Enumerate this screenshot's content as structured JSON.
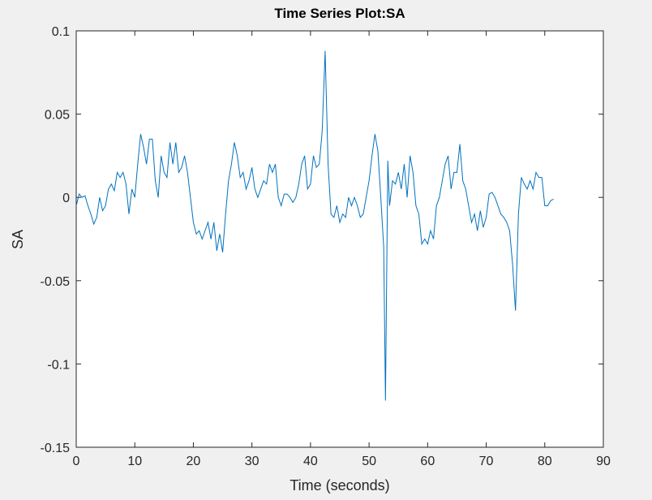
{
  "chart_data": {
    "type": "line",
    "title": "Time Series Plot:SA",
    "xlabel": "Time (seconds)",
    "ylabel": "SA",
    "xlim": [
      0,
      90
    ],
    "xticks": [
      0,
      10,
      20,
      30,
      40,
      50,
      60,
      70,
      80,
      90
    ],
    "ylim": [
      -0.15,
      0.1
    ],
    "yticks": [
      -0.15,
      -0.1,
      -0.05,
      0,
      0.05,
      0.1
    ],
    "grid": false,
    "series": [
      {
        "color": "#0072bd",
        "x": [
          0,
          0.5,
          1,
          1.5,
          2,
          2.5,
          3,
          3.5,
          4,
          4.5,
          5,
          5.5,
          6,
          6.5,
          7,
          7.5,
          8,
          8.5,
          9,
          9.5,
          10,
          10.5,
          11,
          11.5,
          12,
          12.5,
          13,
          13.5,
          14,
          14.5,
          15,
          15.5,
          16,
          16.5,
          17,
          17.5,
          18,
          18.5,
          19,
          19.5,
          20,
          20.5,
          21,
          21.5,
          22,
          22.5,
          23,
          23.5,
          24,
          24.5,
          25,
          25.5,
          26,
          26.5,
          27,
          27.5,
          28,
          28.5,
          29,
          29.5,
          30,
          30.5,
          31,
          31.5,
          32,
          32.5,
          33,
          33.5,
          34,
          34.5,
          35,
          35.5,
          36,
          36.5,
          37,
          37.5,
          38,
          38.5,
          39,
          39.5,
          40,
          40.5,
          41,
          41.5,
          42,
          42.5,
          43,
          43.5,
          44,
          44.5,
          45,
          45.5,
          46,
          46.5,
          47,
          47.5,
          48,
          48.5,
          49,
          49.5,
          50,
          50.5,
          51,
          51.5,
          52,
          52.5,
          52.8,
          53.2,
          53.5,
          54,
          54.5,
          55,
          55.5,
          56,
          56.5,
          57,
          57.5,
          58,
          58.5,
          59,
          59.5,
          60,
          60.5,
          61,
          61.5,
          62,
          62.5,
          63,
          63.5,
          64,
          64.5,
          65,
          65.5,
          66,
          66.5,
          67,
          67.5,
          68,
          68.5,
          69,
          69.5,
          70,
          70.5,
          71,
          71.5,
          72,
          72.5,
          73,
          73.5,
          74,
          74.5,
          75,
          75.5,
          76,
          76.5,
          77,
          77.5,
          78,
          78.5,
          79,
          79.5,
          80,
          80.5,
          81,
          81.5
        ],
        "values": [
          -0.005,
          0.002,
          0,
          0.001,
          -0.005,
          -0.01,
          -0.016,
          -0.012,
          0,
          -0.008,
          -0.005,
          0.005,
          0.008,
          0.004,
          0.015,
          0.012,
          0.015,
          0.008,
          -0.01,
          0.005,
          0,
          0.02,
          0.038,
          0.03,
          0.02,
          0.035,
          0.035,
          0.01,
          0,
          0.025,
          0.015,
          0.012,
          0.033,
          0.02,
          0.033,
          0.015,
          0.018,
          0.025,
          0.015,
          0,
          -0.015,
          -0.022,
          -0.02,
          -0.025,
          -0.02,
          -0.015,
          -0.025,
          -0.015,
          -0.032,
          -0.022,
          -0.033,
          -0.01,
          0.01,
          0.02,
          0.033,
          0.025,
          0.012,
          0.015,
          0.005,
          0.01,
          0.018,
          0.005,
          0,
          0.005,
          0.01,
          0.008,
          0.02,
          0.015,
          0.02,
          0,
          -0.005,
          0.002,
          0.002,
          0,
          -0.003,
          0,
          0.008,
          0.02,
          0.025,
          0.005,
          0.008,
          0.025,
          0.018,
          0.02,
          0.04,
          0.088,
          0.02,
          -0.01,
          -0.012,
          -0.005,
          -0.015,
          -0.01,
          -0.012,
          0,
          -0.005,
          0,
          -0.005,
          -0.012,
          -0.01,
          0,
          0.01,
          0.025,
          0.038,
          0.028,
          0,
          -0.03,
          -0.122,
          0.022,
          -0.005,
          0.01,
          0.008,
          0.015,
          0.005,
          0.02,
          0,
          0.025,
          0.015,
          -0.005,
          -0.01,
          -0.028,
          -0.025,
          -0.028,
          -0.02,
          -0.025,
          -0.005,
          0,
          0.01,
          0.02,
          0.025,
          0.005,
          0.015,
          0.015,
          0.032,
          0.01,
          0.005,
          -0.005,
          -0.015,
          -0.01,
          -0.02,
          -0.008,
          -0.018,
          -0.012,
          0.002,
          0.003,
          0,
          -0.005,
          -0.01,
          -0.012,
          -0.015,
          -0.02,
          -0.04,
          -0.068,
          -0.01,
          0.012,
          0.008,
          0.005,
          0.01,
          0.005,
          0.015,
          0.012,
          0.012,
          -0.005,
          -0.005,
          -0.002,
          -0.001
        ]
      }
    ]
  }
}
